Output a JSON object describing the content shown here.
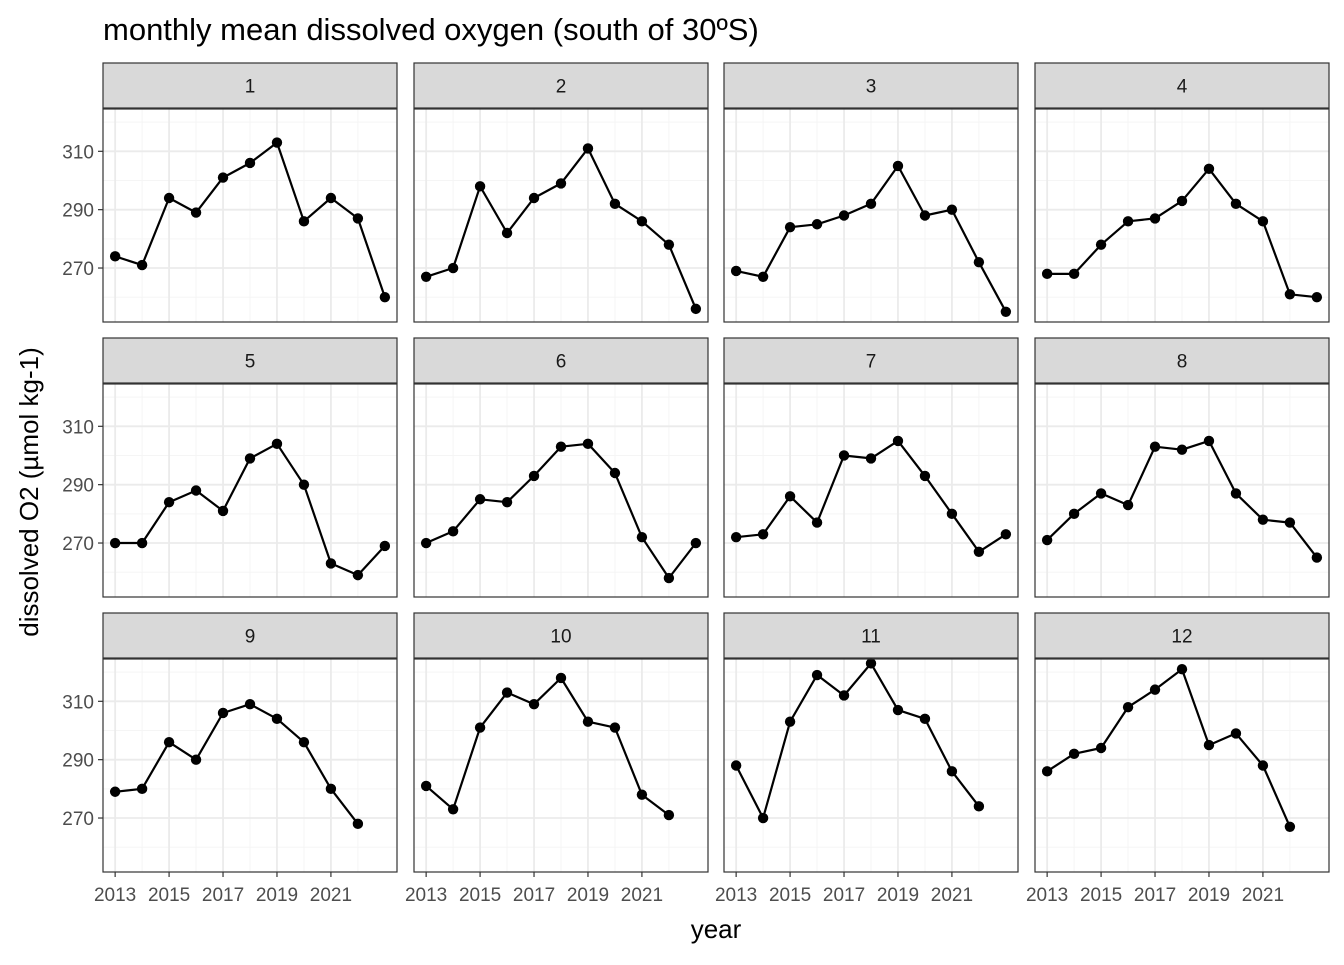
{
  "chart_data": {
    "type": "line",
    "title": "monthly mean dissolved oxygen (south of 30ºS)",
    "xlabel": "year",
    "ylabel": "dissolved O2 (µmol kg-1)",
    "xlim": [
      2012.55,
      2023.45
    ],
    "ylim": [
      251.5,
      324.5
    ],
    "x_ticks": [
      2013,
      2015,
      2017,
      2019,
      2021
    ],
    "y_ticks": [
      270,
      290,
      310
    ],
    "grid": true,
    "facet_layout": {
      "rows": 3,
      "cols": 4
    },
    "facets": [
      {
        "label": "1",
        "x": [
          2013,
          2014,
          2015,
          2016,
          2017,
          2018,
          2019,
          2020,
          2021,
          2022,
          2023
        ],
        "values": [
          274,
          271,
          294,
          289,
          301,
          306,
          313,
          286,
          294,
          287,
          260
        ]
      },
      {
        "label": "2",
        "x": [
          2013,
          2014,
          2015,
          2016,
          2017,
          2018,
          2019,
          2020,
          2021,
          2022,
          2023
        ],
        "values": [
          267,
          270,
          298,
          282,
          294,
          299,
          311,
          292,
          286,
          278,
          256
        ]
      },
      {
        "label": "3",
        "x": [
          2013,
          2014,
          2015,
          2016,
          2017,
          2018,
          2019,
          2020,
          2021,
          2022,
          2023
        ],
        "values": [
          269,
          267,
          284,
          285,
          288,
          292,
          305,
          288,
          290,
          272,
          255
        ]
      },
      {
        "label": "4",
        "x": [
          2013,
          2014,
          2015,
          2016,
          2017,
          2018,
          2019,
          2020,
          2021,
          2022,
          2023
        ],
        "values": [
          268,
          268,
          278,
          286,
          287,
          293,
          304,
          292,
          286,
          261,
          260
        ]
      },
      {
        "label": "5",
        "x": [
          2013,
          2014,
          2015,
          2016,
          2017,
          2018,
          2019,
          2020,
          2021,
          2022,
          2023
        ],
        "values": [
          270,
          270,
          284,
          288,
          281,
          299,
          304,
          290,
          263,
          259,
          269
        ]
      },
      {
        "label": "6",
        "x": [
          2013,
          2014,
          2015,
          2016,
          2017,
          2018,
          2019,
          2020,
          2021,
          2022,
          2023
        ],
        "values": [
          270,
          274,
          285,
          284,
          293,
          303,
          304,
          294,
          272,
          258,
          270
        ]
      },
      {
        "label": "7",
        "x": [
          2013,
          2014,
          2015,
          2016,
          2017,
          2018,
          2019,
          2020,
          2021,
          2022,
          2023
        ],
        "values": [
          272,
          273,
          286,
          277,
          300,
          299,
          305,
          293,
          280,
          267,
          273
        ]
      },
      {
        "label": "8",
        "x": [
          2013,
          2014,
          2015,
          2016,
          2017,
          2018,
          2019,
          2020,
          2021,
          2022,
          2023
        ],
        "values": [
          271,
          280,
          287,
          283,
          303,
          302,
          305,
          287,
          278,
          277,
          265
        ]
      },
      {
        "label": "9",
        "x": [
          2013,
          2014,
          2015,
          2016,
          2017,
          2018,
          2019,
          2020,
          2021,
          2022
        ],
        "values": [
          279,
          280,
          296,
          290,
          306,
          309,
          304,
          296,
          280,
          268
        ]
      },
      {
        "label": "10",
        "x": [
          2013,
          2014,
          2015,
          2016,
          2017,
          2018,
          2019,
          2020,
          2021,
          2022
        ],
        "values": [
          281,
          273,
          301,
          313,
          309,
          318,
          303,
          301,
          278,
          271
        ]
      },
      {
        "label": "11",
        "x": [
          2013,
          2014,
          2015,
          2016,
          2017,
          2018,
          2019,
          2020,
          2021,
          2022
        ],
        "values": [
          288,
          270,
          303,
          319,
          312,
          323,
          307,
          304,
          286,
          274
        ]
      },
      {
        "label": "12",
        "x": [
          2013,
          2014,
          2015,
          2016,
          2017,
          2018,
          2019,
          2020,
          2021,
          2022
        ],
        "values": [
          286,
          292,
          294,
          308,
          314,
          321,
          295,
          299,
          288,
          267
        ]
      }
    ],
    "colors": {
      "line": "#000000",
      "point": "#000000",
      "strip_fill": "#d9d9d9",
      "strip_border": "#333333",
      "panel_border": "#333333",
      "grid_major": "#ebebeb",
      "grid_minor": "#f5f5f5",
      "axis_text": "#4d4d4d"
    }
  }
}
